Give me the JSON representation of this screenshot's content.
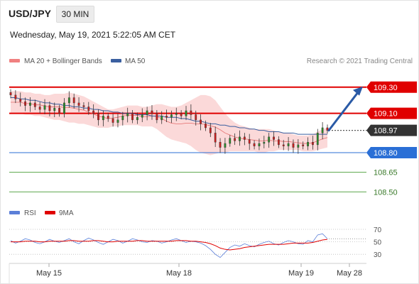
{
  "header": {
    "symbol": "USD/JPY",
    "timeframe": "30 MIN",
    "timestamp": "Wednesday, May 19, 2021 5:22:05 AM CET",
    "copyright": "Research © 2021 Trading Central"
  },
  "legend": {
    "bollinger": "MA 20 + Bollinger Bands",
    "ma50": "MA 50",
    "rsi": "RSI",
    "rsi_ma": "9MA"
  },
  "colors": {
    "bollinger": "#f08080",
    "bollinger_fill": "#f9cccc",
    "ma50": "#3a5fa0",
    "ma20": "#e05050",
    "resistance": "#e00000",
    "current": "#333333",
    "support_blue": "#2a6fd6",
    "support_green": "#5aa64a",
    "candle_up": "#2a8a2a",
    "candle_down": "#c81e1e",
    "rsi": "#5b7fd8",
    "rsi_ma": "#e00000",
    "arrow": "#2a5aa6"
  },
  "chart_data": [
    {
      "type": "candlestick",
      "title": "USD/JPY 30 MIN",
      "ylim": [
        108.42,
        109.44
      ],
      "x_labels": [
        "May 15",
        "May 18",
        "May 19",
        "May 28"
      ],
      "levels": [
        {
          "label": "109.30",
          "value": 109.3,
          "kind": "resistance"
        },
        {
          "label": "109.10",
          "value": 109.1,
          "kind": "resistance"
        },
        {
          "label": "108.97",
          "value": 108.97,
          "kind": "current"
        },
        {
          "label": "108.80",
          "value": 108.8,
          "kind": "support_blue"
        },
        {
          "label": "108.65",
          "value": 108.65,
          "kind": "support_green"
        },
        {
          "label": "108.50",
          "value": 108.5,
          "kind": "support_green"
        }
      ],
      "closes": [
        109.24,
        109.21,
        109.19,
        109.16,
        109.18,
        109.15,
        109.13,
        109.16,
        109.12,
        109.14,
        109.1,
        109.18,
        109.22,
        109.18,
        109.16,
        109.15,
        109.12,
        109.1,
        109.05,
        109.08,
        109.06,
        109.03,
        109.05,
        109.08,
        109.1,
        109.05,
        109.07,
        109.09,
        109.12,
        109.1,
        109.05,
        109.08,
        109.07,
        109.09,
        109.1,
        109.08,
        109.12,
        109.09,
        109.05,
        109.02,
        108.99,
        108.95,
        108.88,
        108.84,
        108.87,
        108.91,
        108.89,
        108.92,
        108.9,
        108.87,
        108.85,
        108.87,
        108.88,
        108.92,
        108.9,
        108.86,
        108.85,
        108.87,
        108.84,
        108.86,
        108.85,
        108.88,
        108.86,
        108.95,
        108.99,
        108.97
      ],
      "ma50": [
        109.22,
        109.22,
        109.21,
        109.21,
        109.2,
        109.2,
        109.19,
        109.18,
        109.18,
        109.17,
        109.17,
        109.16,
        109.16,
        109.15,
        109.15,
        109.14,
        109.14,
        109.13,
        109.13,
        109.12,
        109.12,
        109.11,
        109.11,
        109.1,
        109.1,
        109.1,
        109.09,
        109.09,
        109.09,
        109.08,
        109.08,
        109.08,
        109.07,
        109.07,
        109.07,
        109.06,
        109.06,
        109.05,
        109.04,
        109.04,
        109.03,
        109.02,
        109.02,
        109.01,
        109.01,
        109.0,
        109.0,
        108.99,
        108.99,
        108.98,
        108.98,
        108.97,
        108.97,
        108.96,
        108.96,
        108.96,
        108.95,
        108.95,
        108.95,
        108.94,
        108.94,
        108.94,
        108.94,
        108.94,
        108.94,
        108.94
      ],
      "bollinger_upper": [
        109.27,
        109.27,
        109.27,
        109.26,
        109.26,
        109.25,
        109.25,
        109.24,
        109.24,
        109.25,
        109.25,
        109.25,
        109.26,
        109.25,
        109.24,
        109.23,
        109.21,
        109.19,
        109.17,
        109.15,
        109.13,
        109.13,
        109.14,
        109.15,
        109.16,
        109.16,
        109.16,
        109.15,
        109.15,
        109.16,
        109.17,
        109.17,
        109.16,
        109.15,
        109.15,
        109.16,
        109.18,
        109.2,
        109.22,
        109.24,
        109.24,
        109.23,
        109.2,
        109.15,
        109.1,
        109.06,
        109.03,
        109.01,
        109.0,
        108.99,
        108.98,
        108.98,
        108.98,
        108.98,
        108.97,
        108.96,
        108.95,
        108.95,
        108.94,
        108.93,
        108.93,
        108.93,
        108.94,
        108.96,
        108.98,
        108.99
      ],
      "bollinger_lower": [
        109.1,
        109.1,
        109.1,
        109.09,
        109.09,
        109.08,
        109.08,
        109.07,
        109.06,
        109.05,
        109.05,
        109.04,
        109.03,
        109.03,
        109.02,
        109.02,
        109.01,
        109.0,
        108.99,
        108.99,
        108.99,
        109.0,
        109.0,
        109.01,
        109.01,
        109.01,
        109.01,
        109.0,
        109.0,
        109.0,
        108.98,
        108.95,
        108.92,
        108.9,
        108.89,
        108.88,
        108.87,
        108.85,
        108.82,
        108.8,
        108.79,
        108.78,
        108.79,
        108.8,
        108.8,
        108.81,
        108.81,
        108.81,
        108.81,
        108.81,
        108.81,
        108.8,
        108.8,
        108.81,
        108.81,
        108.82,
        108.82,
        108.82,
        108.82,
        108.82,
        108.81,
        108.81,
        108.81,
        108.82,
        108.83,
        108.84
      ],
      "forecast_arrow": {
        "from": 108.97,
        "to": 109.3
      }
    },
    {
      "type": "line",
      "title": "RSI",
      "ylim": [
        20,
        78
      ],
      "ticks": [
        70,
        50,
        30
      ],
      "series": [
        {
          "name": "RSI",
          "values": [
            52,
            48,
            51,
            55,
            53,
            49,
            47,
            50,
            54,
            51,
            49,
            52,
            55,
            50,
            47,
            52,
            56,
            53,
            49,
            46,
            50,
            54,
            52,
            48,
            51,
            55,
            53,
            50,
            49,
            52,
            51,
            48,
            50,
            53,
            55,
            52,
            49,
            51,
            50,
            48,
            44,
            38,
            30,
            25,
            33,
            41,
            45,
            43,
            47,
            44,
            42,
            46,
            49,
            51,
            47,
            45,
            49,
            52,
            50,
            47,
            46,
            52,
            50,
            61,
            63,
            55
          ]
        },
        {
          "name": "9MA",
          "values": [
            50,
            50,
            50,
            51,
            51,
            51,
            50,
            50,
            51,
            51,
            51,
            51,
            52,
            52,
            51,
            51,
            51,
            52,
            52,
            51,
            50,
            50,
            51,
            51,
            51,
            51,
            52,
            52,
            51,
            51,
            51,
            51,
            51,
            51,
            52,
            52,
            52,
            51,
            51,
            50,
            49,
            47,
            44,
            40,
            38,
            37,
            38,
            39,
            41,
            42,
            43,
            44,
            45,
            46,
            46,
            46,
            46,
            47,
            48,
            48,
            48,
            48,
            49,
            51,
            53,
            54
          ]
        }
      ]
    }
  ]
}
